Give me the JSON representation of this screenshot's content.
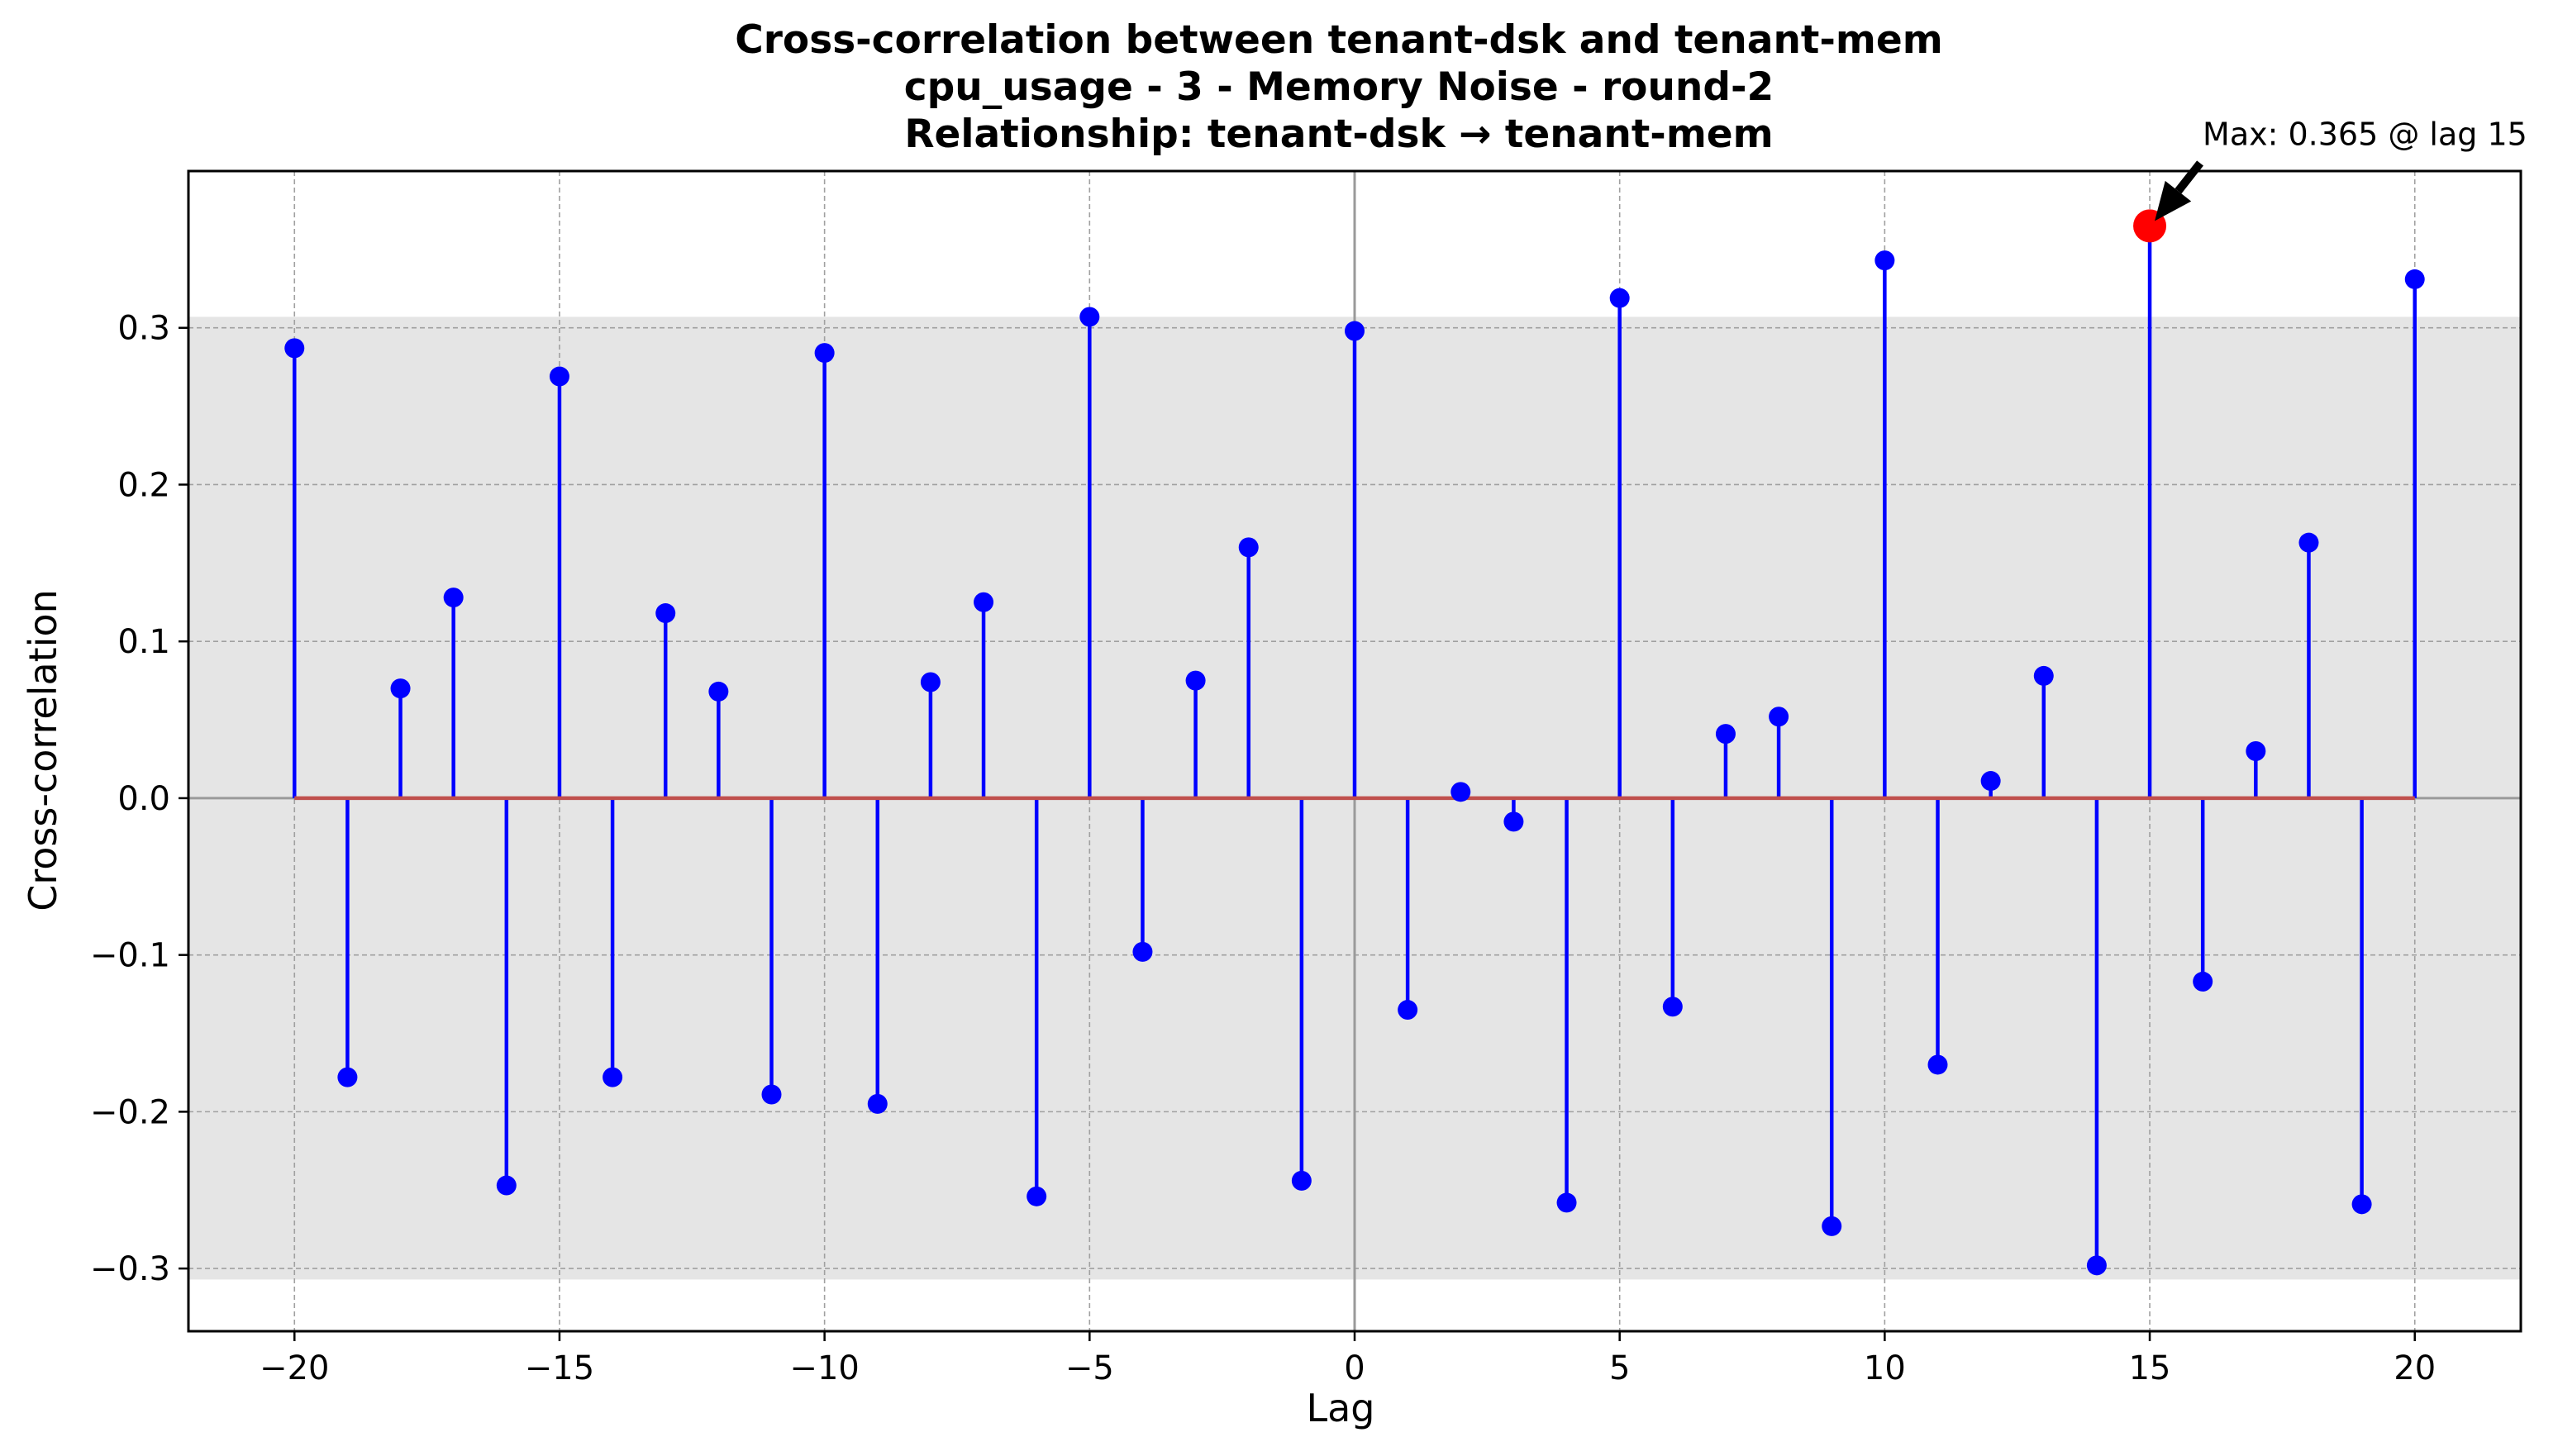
{
  "chart_data": {
    "type": "stem",
    "title_lines": [
      "Cross-correlation between tenant-dsk and tenant-mem",
      "cpu_usage - 3 - Memory Noise - round-2",
      "Relationship: tenant-dsk → tenant-mem"
    ],
    "xlabel": "Lag",
    "ylabel": "Cross-correlation",
    "xlim": [
      -22,
      22
    ],
    "ylim": [
      -0.34,
      0.4
    ],
    "x_ticks": [
      -20,
      -15,
      -10,
      -5,
      0,
      5,
      10,
      15,
      20
    ],
    "x_tick_labels": [
      "−20",
      "−15",
      "−10",
      "−5",
      "0",
      "5",
      "10",
      "15",
      "20"
    ],
    "y_ticks": [
      -0.3,
      -0.2,
      -0.1,
      0.0,
      0.1,
      0.2,
      0.3
    ],
    "y_tick_labels": [
      "−0.3",
      "−0.2",
      "−0.1",
      "0.0",
      "0.1",
      "0.2",
      "0.3"
    ],
    "grid": true,
    "confidence_band": [
      -0.307,
      0.307
    ],
    "x": [
      -20,
      -19,
      -18,
      -17,
      -16,
      -15,
      -14,
      -13,
      -12,
      -11,
      -10,
      -9,
      -8,
      -7,
      -6,
      -5,
      -4,
      -3,
      -2,
      -1,
      0,
      1,
      2,
      3,
      4,
      5,
      6,
      7,
      8,
      9,
      10,
      11,
      12,
      13,
      14,
      15,
      16,
      17,
      18,
      19,
      20
    ],
    "values": [
      0.287,
      -0.178,
      0.07,
      0.128,
      -0.247,
      0.269,
      -0.178,
      0.118,
      0.068,
      -0.189,
      0.284,
      -0.195,
      0.074,
      0.125,
      -0.254,
      0.307,
      -0.098,
      0.075,
      0.16,
      -0.244,
      0.298,
      -0.135,
      0.004,
      -0.015,
      -0.258,
      0.319,
      -0.133,
      0.041,
      0.052,
      -0.273,
      0.343,
      -0.17,
      0.011,
      0.078,
      -0.298,
      0.365,
      -0.117,
      0.03,
      0.163,
      -0.259,
      0.331
    ],
    "max_point": {
      "lag": 15,
      "value": 0.365
    },
    "annotation": "Max: 0.365 @ lag 15",
    "colors": {
      "stem": "#0000ff",
      "marker": "#0000ff",
      "baseline": "#c0504d",
      "max_marker": "#ff0000",
      "band": "#e5e5e5",
      "zero_line": "#9a9a9a",
      "grid": "#a0a0a0"
    }
  }
}
